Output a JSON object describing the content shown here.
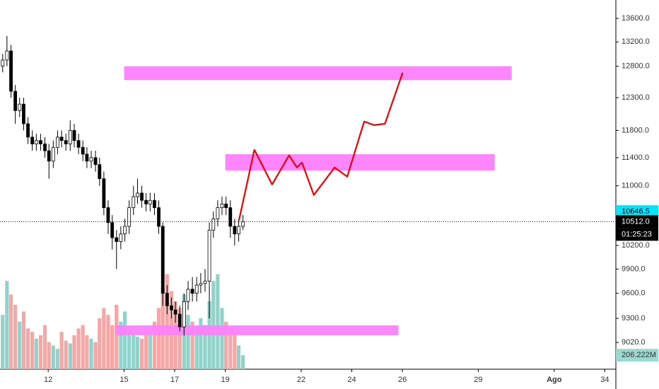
{
  "chart_data": {
    "type": "candlestick",
    "log_scale": true,
    "xlim": [
      10.095,
      34.41
    ],
    "ylim": [
      8720,
      13920
    ],
    "xticks": [
      12,
      15,
      17,
      19,
      22,
      24,
      26,
      29,
      {
        "value": 32,
        "label": "Ago"
      },
      34
    ],
    "yticks": [
      {
        "value": 13600,
        "label": "13600.0"
      },
      {
        "value": 13200,
        "label": "13200.0"
      },
      {
        "value": 12800,
        "label": "12800.0"
      },
      {
        "value": 12300,
        "label": "12300.0"
      },
      {
        "value": 11800,
        "label": "11800.0"
      },
      {
        "value": 11400,
        "label": "11400.0"
      },
      {
        "value": 11000,
        "label": "11000.0"
      },
      {
        "value": 10200,
        "label": "10200.0"
      },
      {
        "value": 9900,
        "label": "9900.0"
      },
      {
        "value": 9600,
        "label": "9600.0"
      },
      {
        "value": 9300,
        "label": "9300.0"
      },
      {
        "value": 9020,
        "label": "9020.0"
      }
    ],
    "up_color": "#ffffff",
    "down_color": "#000000",
    "candles": {
      "x": [
        10.2,
        10.37,
        10.53,
        10.7,
        10.87,
        11.03,
        11.2,
        11.37,
        11.53,
        11.7,
        11.87,
        12.03,
        12.2,
        12.37,
        12.53,
        12.7,
        12.87,
        13.03,
        13.2,
        13.37,
        13.53,
        13.7,
        13.87,
        14.03,
        14.2,
        14.37,
        14.53,
        14.7,
        14.87,
        15.03,
        15.2,
        15.37,
        15.53,
        15.7,
        15.87,
        16.03,
        16.2,
        16.37,
        16.53,
        16.7,
        16.87,
        17.03,
        17.2,
        17.37,
        17.53,
        17.7,
        17.87,
        18.03,
        18.2,
        18.37,
        18.53,
        18.7,
        18.87,
        19.03,
        19.2,
        19.37,
        19.53,
        19.7
      ],
      "open": [
        12800,
        12900,
        13050,
        12400,
        12100,
        12200,
        11900,
        11700,
        11600,
        11650,
        11600,
        11500,
        11350,
        11550,
        11700,
        11650,
        11600,
        11800,
        11650,
        11550,
        11450,
        11350,
        11400,
        11300,
        11100,
        10700,
        10500,
        10300,
        10250,
        10350,
        10450,
        10700,
        10850,
        10900,
        10800,
        10750,
        10800,
        10700,
        10450,
        9600,
        9450,
        9400,
        9350,
        9200,
        9500,
        9650,
        9600,
        9700,
        9720,
        9750,
        10400,
        10550,
        10700,
        10750,
        10700,
        10450,
        10350,
        10450
      ],
      "high": [
        13000,
        13300,
        13150,
        12500,
        12300,
        12300,
        12000,
        11800,
        11750,
        11750,
        11700,
        11600,
        11650,
        11800,
        11800,
        11750,
        11950,
        11900,
        11750,
        11650,
        11550,
        11500,
        11500,
        11400,
        11200,
        10800,
        10600,
        10400,
        10450,
        10550,
        10800,
        11000,
        11100,
        11000,
        10900,
        10900,
        10900,
        10800,
        10500,
        9700,
        9550,
        9500,
        9450,
        9600,
        9750,
        9800,
        9800,
        9850,
        9900,
        10500,
        10650,
        10800,
        10850,
        10850,
        10800,
        10550,
        10550,
        10600
      ],
      "low": [
        12700,
        12800,
        12300,
        11900,
        12000,
        11800,
        11600,
        11500,
        11500,
        11500,
        11400,
        11100,
        11250,
        11450,
        11550,
        11500,
        11500,
        11550,
        11450,
        11350,
        11250,
        11250,
        11200,
        11000,
        10600,
        10350,
        10150,
        9900,
        10150,
        10250,
        10350,
        10600,
        10750,
        10700,
        10650,
        10650,
        10600,
        10350,
        9450,
        9350,
        9300,
        9250,
        9150,
        9100,
        9400,
        9500,
        9500,
        9600,
        9620,
        9300,
        10300,
        10450,
        10600,
        10600,
        10300,
        10200,
        10250,
        10400
      ],
      "close": [
        12900,
        13050,
        12400,
        12100,
        12200,
        11900,
        11700,
        11600,
        11650,
        11600,
        11500,
        11350,
        11550,
        11700,
        11650,
        11600,
        11800,
        11650,
        11550,
        11450,
        11350,
        11400,
        11300,
        11100,
        10700,
        10500,
        10300,
        10250,
        10350,
        10450,
        10700,
        10850,
        10900,
        10800,
        10750,
        10800,
        10700,
        10450,
        9600,
        9450,
        9400,
        9350,
        9200,
        9500,
        9650,
        9600,
        9700,
        9720,
        9750,
        10400,
        10550,
        10700,
        10750,
        10700,
        10450,
        10350,
        10450,
        10512
      ]
    },
    "volume": {
      "values": [
        800,
        1300,
        1100,
        950,
        700,
        850,
        600,
        550,
        450,
        500,
        650,
        400,
        350,
        300,
        550,
        420,
        380,
        500,
        600,
        650,
        500,
        450,
        400,
        750,
        900,
        800,
        650,
        950,
        700,
        850,
        600,
        500,
        480,
        450,
        550,
        500,
        700,
        900,
        1200,
        1400,
        1150,
        1000,
        900,
        1100,
        800,
        700,
        600,
        750,
        650,
        1000,
        1300,
        1400,
        900,
        700,
        600,
        500,
        350,
        206.222
      ],
      "ylim": [
        0,
        2000
      ],
      "up_color": "#8fd3ca",
      "down_color": "#f4a7a4",
      "last_label": "206.222M",
      "label_color": "#9ad9cf"
    },
    "zones": {
      "color": "#ff80ff",
      "items": [
        {
          "x": [
            15.0,
            30.32
          ],
          "y": [
            12580,
            12800
          ]
        },
        {
          "x": [
            19.0,
            29.65
          ],
          "y": [
            11217,
            11450
          ]
        },
        {
          "x": [
            14.66,
            25.84
          ],
          "y": [
            9102,
            9217
          ]
        }
      ]
    },
    "projection": {
      "color": "#ee0000",
      "x": [
        19.54,
        20.15,
        20.85,
        21.52,
        21.83,
        22.03,
        22.5,
        23.32,
        23.82,
        24.49,
        24.88,
        25.31,
        26.01
      ],
      "y": [
        10530,
        11514,
        11019,
        11432,
        11259,
        11330,
        10873,
        11259,
        11129,
        11934,
        11880,
        11900,
        12694
      ]
    },
    "price_labels": [
      {
        "value": 10646.5,
        "label": "10646.5",
        "color": "#00e5ff",
        "text_color": "#000000"
      },
      {
        "value": 10512.0,
        "label": "10512.0",
        "color": "#000000",
        "text_color": "#ffffff",
        "line": true
      }
    ],
    "countdown": "01:25:23"
  }
}
